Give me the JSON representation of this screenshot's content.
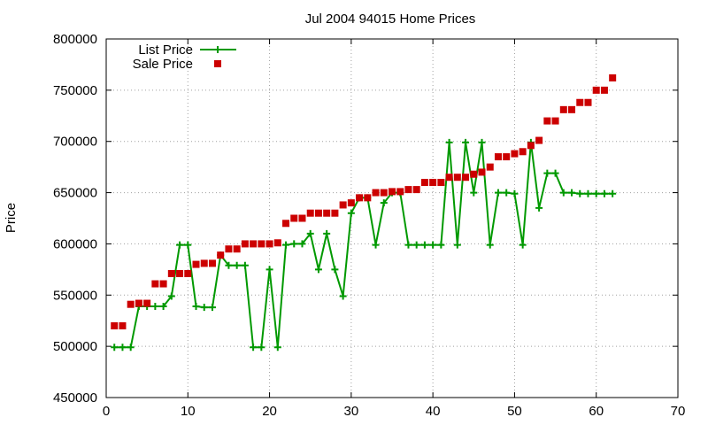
{
  "chart_data": {
    "type": "line",
    "title": "Jul 2004 94015 Home Prices",
    "xlabel": "",
    "ylabel": "Price",
    "xlim": [
      0,
      70
    ],
    "ylim": [
      450000,
      800000
    ],
    "xticks": [
      0,
      10,
      20,
      30,
      40,
      50,
      60,
      70
    ],
    "yticks": [
      450000,
      500000,
      550000,
      600000,
      650000,
      700000,
      750000,
      800000
    ],
    "grid": true,
    "legend_position": "top-left",
    "series": [
      {
        "name": "List Price",
        "type": "line",
        "marker": "plus",
        "color": "#009900",
        "x": [
          1,
          2,
          3,
          4,
          5,
          6,
          7,
          8,
          9,
          10,
          11,
          12,
          13,
          14,
          15,
          16,
          17,
          18,
          19,
          20,
          21,
          22,
          23,
          24,
          25,
          26,
          27,
          28,
          29,
          30,
          31,
          32,
          33,
          34,
          35,
          36,
          37,
          38,
          39,
          40,
          41,
          42,
          43,
          44,
          45,
          46,
          47,
          48,
          49,
          50,
          51,
          52,
          53,
          54,
          55,
          56,
          57,
          58,
          59,
          60,
          61,
          62
        ],
        "values": [
          499000,
          499000,
          499000,
          539000,
          539000,
          539000,
          539000,
          549000,
          599000,
          599000,
          539000,
          538000,
          538000,
          589000,
          579000,
          579000,
          579000,
          499000,
          499000,
          575000,
          499000,
          599000,
          600000,
          600000,
          610000,
          575000,
          610000,
          575000,
          549000,
          630000,
          645000,
          645000,
          599000,
          640000,
          650000,
          650000,
          599000,
          599000,
          599000,
          599000,
          599000,
          699000,
          599000,
          699000,
          650000,
          699000,
          599000,
          650000,
          650000,
          649000,
          599000,
          699000,
          635000,
          669000,
          669000,
          650000,
          650000,
          649000,
          649000,
          649000,
          649000,
          649000
        ]
      },
      {
        "name": "Sale Price",
        "type": "scatter",
        "marker": "square",
        "color": "#cc0000",
        "x": [
          1,
          2,
          3,
          4,
          5,
          6,
          7,
          8,
          9,
          10,
          11,
          12,
          13,
          14,
          15,
          16,
          17,
          18,
          19,
          20,
          21,
          22,
          23,
          24,
          25,
          26,
          27,
          28,
          29,
          30,
          31,
          32,
          33,
          34,
          35,
          36,
          37,
          38,
          39,
          40,
          41,
          42,
          43,
          44,
          45,
          46,
          47,
          48,
          49,
          50,
          51,
          52,
          53,
          54,
          55,
          56,
          57,
          58,
          59,
          60,
          61,
          62
        ],
        "values": [
          520000,
          520000,
          541000,
          542000,
          542000,
          561000,
          561000,
          571000,
          571000,
          571000,
          580000,
          581000,
          581000,
          589000,
          595000,
          595000,
          600000,
          600000,
          600000,
          600000,
          601000,
          620000,
          625000,
          625000,
          630000,
          630000,
          630000,
          630000,
          638000,
          640000,
          645000,
          645000,
          650000,
          650000,
          651000,
          651000,
          653000,
          653000,
          660000,
          660000,
          660000,
          665000,
          665000,
          665000,
          668000,
          670000,
          675000,
          685000,
          685000,
          688000,
          690000,
          696000,
          701000,
          720000,
          720000,
          731000,
          731000,
          738000,
          738000,
          750000,
          750000,
          762000
        ]
      }
    ]
  }
}
